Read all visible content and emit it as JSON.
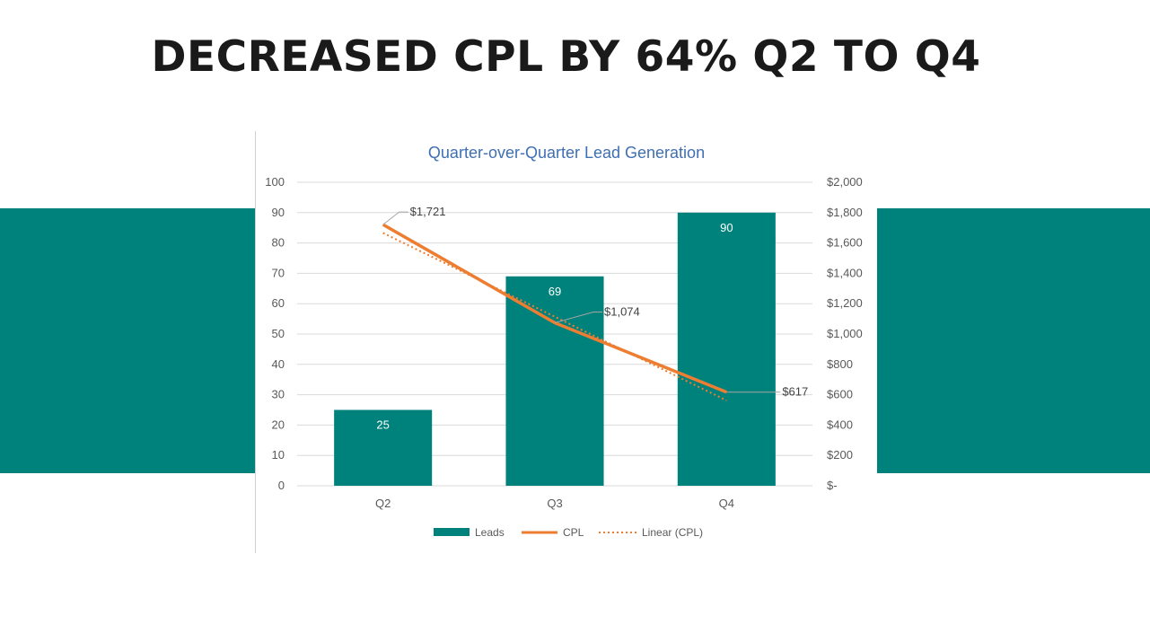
{
  "slide": {
    "title": "DECREASED CPL BY 64% Q2 TO Q4",
    "band_color": "#00827c"
  },
  "chart_data": {
    "type": "bar",
    "title": "Quarter-over-Quarter Lead Generation",
    "categories": [
      "Q2",
      "Q3",
      "Q4"
    ],
    "series": [
      {
        "name": "Leads",
        "type": "bar",
        "axis": "left",
        "values": [
          25,
          69,
          90
        ],
        "data_labels": [
          "25",
          "69",
          "90"
        ],
        "color": "#00827c"
      },
      {
        "name": "CPL",
        "type": "line",
        "axis": "right",
        "values": [
          1721,
          1074,
          617
        ],
        "data_labels": [
          "$1,721",
          "$1,074",
          "$617"
        ],
        "color": "#ed7d31"
      },
      {
        "name": "Linear (CPL)",
        "type": "line",
        "style": "dotted",
        "axis": "right",
        "values": [
          1666,
          1114,
          562
        ],
        "color": "#ed7d31"
      }
    ],
    "y_left": {
      "range": [
        0,
        100
      ],
      "ticks": [
        0,
        10,
        20,
        30,
        40,
        50,
        60,
        70,
        80,
        90,
        100
      ],
      "tick_labels": [
        "0",
        "10",
        "20",
        "30",
        "40",
        "50",
        "60",
        "70",
        "80",
        "90",
        "100"
      ]
    },
    "y_right": {
      "range": [
        0,
        2000
      ],
      "ticks": [
        0,
        200,
        400,
        600,
        800,
        1000,
        1200,
        1400,
        1600,
        1800,
        2000
      ],
      "tick_labels": [
        "$-",
        "$200",
        "$400",
        "$600",
        "$800",
        "$1,000",
        "$1,200",
        "$1,400",
        "$1,600",
        "$1,800",
        "$2,000"
      ]
    },
    "grid": true,
    "legend_position": "bottom"
  }
}
